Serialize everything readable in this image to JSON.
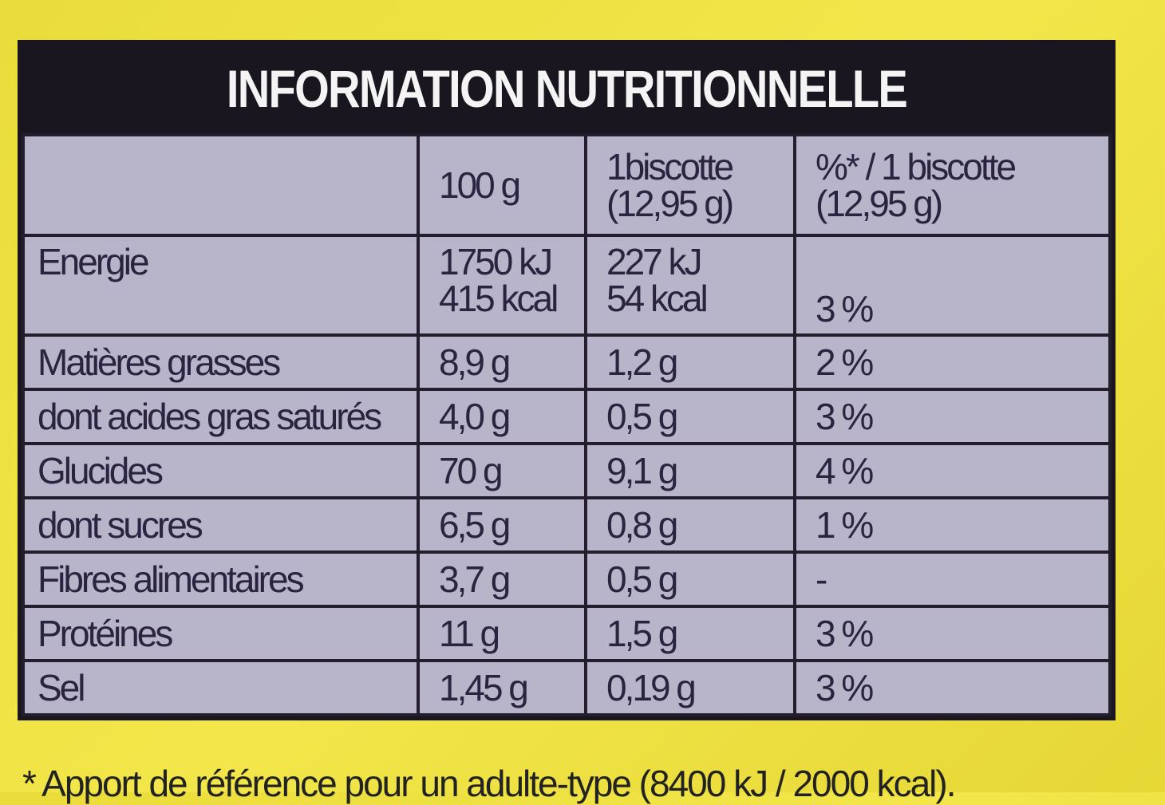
{
  "title": "INFORMATION NUTRITIONNELLE",
  "table": {
    "header": [
      [
        "100 g"
      ],
      [
        "1biscotte",
        "(12,95 g)"
      ],
      [
        "%* / 1 biscotte",
        "(12,95 g)"
      ]
    ],
    "rows": [
      {
        "label": "Energie",
        "cells": [
          [
            "1750 kJ",
            "415 kcal"
          ],
          [
            "227 kJ",
            "54 kcal"
          ],
          [
            "3 %"
          ]
        ]
      },
      {
        "label": "Matières grasses",
        "cells": [
          [
            "8,9 g"
          ],
          [
            "1,2 g"
          ],
          [
            "2 %"
          ]
        ]
      },
      {
        "label": "dont acides gras saturés",
        "cells": [
          [
            "4,0 g"
          ],
          [
            "0,5 g"
          ],
          [
            "3 %"
          ]
        ]
      },
      {
        "label": "Glucides",
        "cells": [
          [
            "70 g"
          ],
          [
            "9,1 g"
          ],
          [
            "4 %"
          ]
        ]
      },
      {
        "label": "dont sucres",
        "cells": [
          [
            "6,5 g"
          ],
          [
            "0,8 g"
          ],
          [
            "1 %"
          ]
        ]
      },
      {
        "label": "Fibres alimentaires",
        "cells": [
          [
            "3,7 g"
          ],
          [
            "0,5 g"
          ],
          [
            "-"
          ]
        ]
      },
      {
        "label": "Protéines",
        "cells": [
          [
            "11 g"
          ],
          [
            "1,5 g"
          ],
          [
            "3 %"
          ]
        ]
      },
      {
        "label": "Sel",
        "cells": [
          [
            "1,45 g"
          ],
          [
            "0,19 g"
          ],
          [
            "3 %"
          ]
        ]
      }
    ]
  },
  "footnote": "* Apport de référence pour un adulte-type (8400 kJ / 2000 kcal)."
}
